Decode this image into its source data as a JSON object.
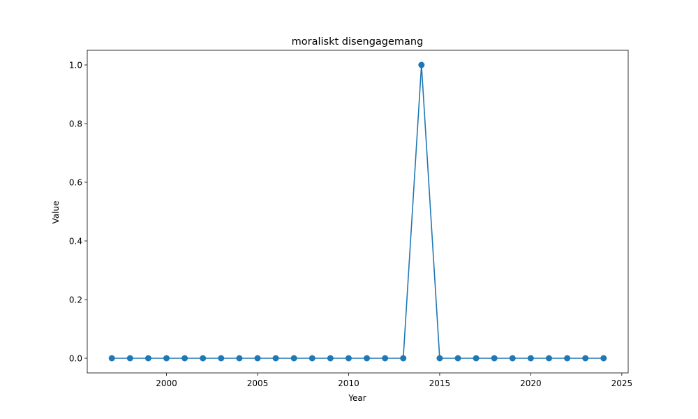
{
  "chart_data": {
    "type": "line",
    "title": "moraliskt disengagemang",
    "xlabel": "Year",
    "ylabel": "Value",
    "xlim": [
      1995.65,
      2025.35
    ],
    "ylim": [
      -0.05,
      1.05
    ],
    "xticks": [
      2000,
      2005,
      2010,
      2015,
      2020,
      2025
    ],
    "yticks": [
      0.0,
      0.2,
      0.4,
      0.6,
      0.8,
      1.0
    ],
    "xtick_labels": [
      "2000",
      "2005",
      "2010",
      "2015",
      "2020",
      "2025"
    ],
    "ytick_labels": [
      "0.0",
      "0.2",
      "0.4",
      "0.6",
      "0.8",
      "1.0"
    ],
    "grid": false,
    "series": [
      {
        "color": "#1f77b4",
        "marker": "circle",
        "x": [
          1997,
          1998,
          1999,
          2000,
          2001,
          2002,
          2003,
          2004,
          2005,
          2006,
          2007,
          2008,
          2009,
          2010,
          2011,
          2012,
          2013,
          2014,
          2015,
          2016,
          2017,
          2018,
          2019,
          2020,
          2021,
          2022,
          2023,
          2024
        ],
        "y": [
          0,
          0,
          0,
          0,
          0,
          0,
          0,
          0,
          0,
          0,
          0,
          0,
          0,
          0,
          0,
          0,
          0,
          1,
          0,
          0,
          0,
          0,
          0,
          0,
          0,
          0,
          0,
          0
        ]
      }
    ]
  }
}
